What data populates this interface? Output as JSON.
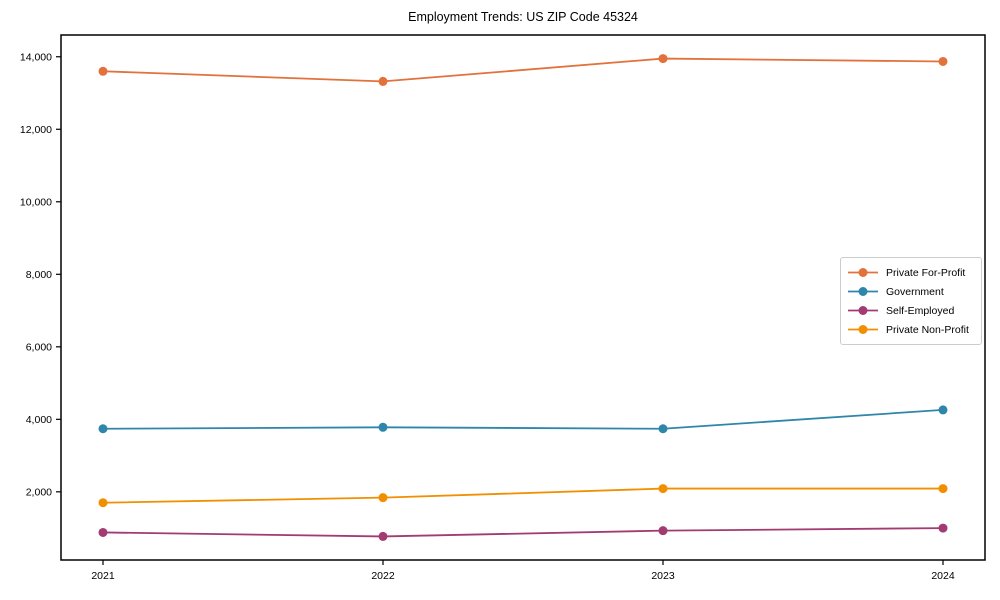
{
  "chart_data": {
    "type": "line",
    "title": "Employment Trends: US ZIP Code 45324",
    "x": [
      2021,
      2022,
      2023,
      2024
    ],
    "xticklabels": [
      "2021",
      "2022",
      "2023",
      "2024"
    ],
    "yticks": [
      2000,
      4000,
      6000,
      8000,
      10000,
      12000,
      14000
    ],
    "yticklabels": [
      "2,000",
      "4,000",
      "6,000",
      "8,000",
      "10,000",
      "12,000",
      "14,000"
    ],
    "series": [
      {
        "name": "Private For-Profit",
        "color": "#e2713b",
        "values": [
          13600,
          13320,
          13950,
          13870
        ]
      },
      {
        "name": "Government",
        "color": "#2e86ab",
        "values": [
          3740,
          3780,
          3740,
          4260
        ]
      },
      {
        "name": "Self-Employed",
        "color": "#a23b72",
        "values": [
          880,
          770,
          930,
          1000
        ]
      },
      {
        "name": "Private Non-Profit",
        "color": "#f18f01",
        "values": [
          1700,
          1840,
          2090,
          2090
        ]
      }
    ],
    "xlim": [
      2020.85,
      2024.15
    ],
    "ylim": [
      120,
      14600
    ],
    "xlabel": "",
    "ylabel": "",
    "grid": false,
    "marker": "o",
    "legend_position": "center right",
    "frame_color": "#000000",
    "text_color": "#000000"
  }
}
